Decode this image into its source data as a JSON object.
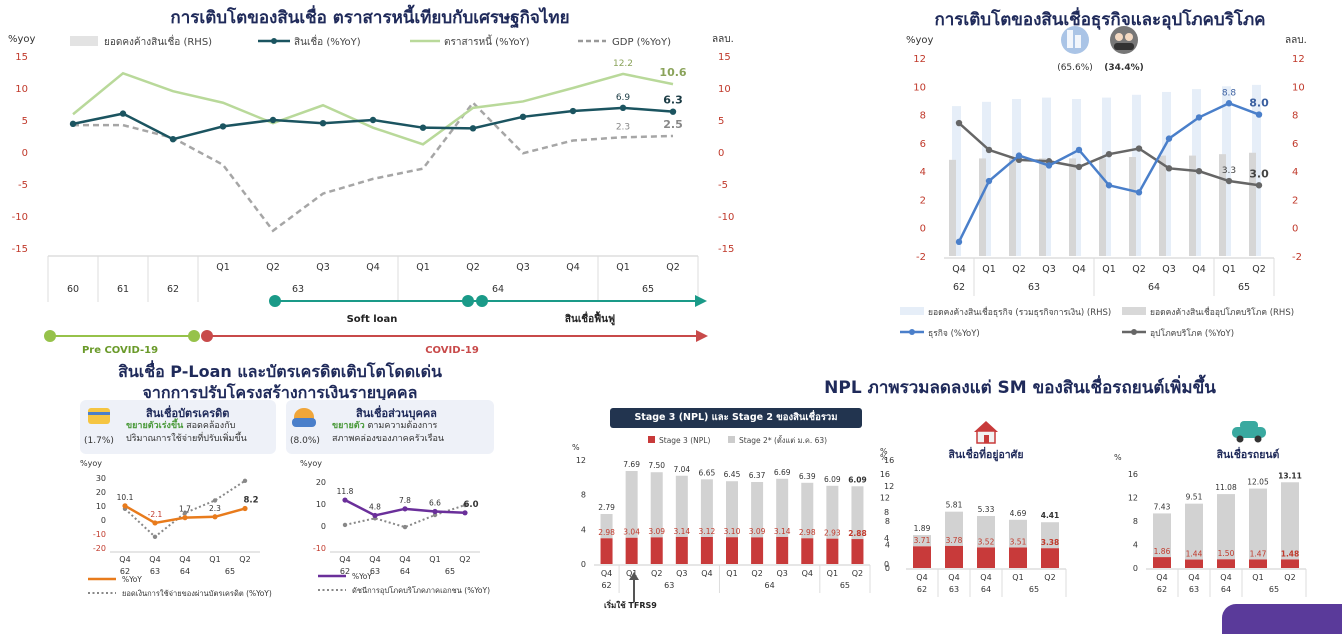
{
  "main": {
    "title": "การเติบโตของสินเชื่อ ตราสารหนี้เทียบกับเศรษฐกิจไทย",
    "left_unit": "%yoy",
    "right_unit": "ลลบ.",
    "legend": [
      "ยอดคงค้างสินเชื่อ (RHS)",
      "สินเชื่อ (%YoY)",
      "ตราสารหนี้ (%YoY)",
      "GDP (%YoY)"
    ],
    "phases": {
      "soft_loan": "Soft loan",
      "recovery": "สินเชื่อฟื้นฟู",
      "pre_covid": "Pre COVID-19",
      "covid": "COVID-19"
    }
  },
  "right": {
    "title": "การเติบโตของสินเชื่อธุรกิจและอุปโภคบริโภค",
    "left_unit": "%yoy",
    "right_unit": "ลลบ.",
    "share_business": "(65.6%)",
    "share_consumer": "(34.4%)",
    "legend": [
      "ยอดคงค้างสินเชื่อธุรกิจ (รวมธุรกิจการเงิน) (RHS)",
      "ยอดคงค้างสินเชื่ออุปโภคบริโภค (RHS)",
      "ธุรกิจ (%YoY)",
      "อุปโภคบริโภค (%YoY)"
    ]
  },
  "ploan": {
    "title_line1": "สินเชื่อ P-Loan และบัตรเครดิตเติบโตโดดเด่น",
    "title_line2": "จากการปรับโครงสร้างการเงินรายบุคคล",
    "card1": {
      "title": "สินเชื่อบัตรเครดิต",
      "share": "(1.7%)",
      "desc_bold": "ขยายตัวเร่งขึ้น",
      "desc_rest": " สอดคล้องกับ",
      "desc_line2": "ปริมาณการใช้จ่ายที่ปรับเพิ่มขึ้น"
    },
    "card2": {
      "title": "สินเชื่อส่วนบุคคล",
      "share": "(8.0%)",
      "desc_bold": "ขยายตัว",
      "desc_rest": " ตามความต้องการ",
      "desc_line2": "สภาพคล่องของภาคครัวเรือน"
    },
    "unit": "%yoy",
    "legend_cc": [
      "%YoY",
      "ยอดเงินการใช้จ่ายของผ่านบัตรเครดิต (%YoY)"
    ],
    "legend_pl": [
      "%YoY",
      "ดัชนีการอุปโภคบริโภคภาคเอกชน (%YoY)"
    ]
  },
  "npl": {
    "title": "NPL ภาพรวมลดลงแต่ SM ของสินเชื่อรถยนต์เพิ่มขึ้น",
    "box_title": "Stage 3 (NPL) และ Stage 2 ของสินเชื่อรวม",
    "legend": [
      "Stage 3 (NPL)",
      "Stage 2* (ตั้งแต่ ม.ค. 63)"
    ],
    "unit": "%",
    "note": "เริ่มใช้ TFRS9",
    "housing_label": "สินเชื่อที่อยู่อาศัย",
    "auto_label": "สินเชื่อรถยนต์"
  },
  "chart_data": [
    {
      "type": "bar",
      "title": "การเติบโตของสินเชื่อ ตราสารหนี้เทียบกับเศรษฐกิจไทย",
      "categories": [
        "60",
        "61",
        "62",
        "Q1",
        "Q2",
        "Q3",
        "Q4",
        "Q1",
        "Q2",
        "Q3",
        "Q4",
        "Q1",
        "Q2"
      ],
      "year_groups": [
        {
          "label": "63",
          "span": [
            3,
            6
          ]
        },
        {
          "label": "64",
          "span": [
            7,
            10
          ]
        },
        {
          "label": "65",
          "span": [
            11,
            12
          ]
        }
      ],
      "ylim": [
        -15,
        15
      ],
      "yticks": [
        -15,
        -10,
        -5,
        0,
        5,
        10,
        15
      ],
      "series": [
        {
          "name": "ยอดคงค้างสินเชื่อ (RHS)",
          "type": "bar",
          "values": [
            12.6,
            13.2,
            13.6,
            13.9,
            14.2,
            14.2,
            14.4,
            14.6,
            14.7,
            14.7,
            14.9,
            15.0,
            15.1
          ]
        },
        {
          "name": "สินเชื่อ (%YoY)",
          "type": "line",
          "values": [
            4.4,
            6.0,
            2.0,
            4.0,
            5.0,
            4.5,
            5.0,
            3.8,
            3.7,
            5.5,
            6.4,
            6.9,
            6.3
          ]
        },
        {
          "name": "ตราสารหนี้ (%YoY)",
          "type": "line",
          "values": [
            5.9,
            12.3,
            9.5,
            7.7,
            4.5,
            7.3,
            3.8,
            1.2,
            6.9,
            7.9,
            10.0,
            12.2,
            10.6
          ]
        },
        {
          "name": "GDP (%YoY)",
          "type": "line",
          "values": [
            4.2,
            4.2,
            2.2,
            -2.0,
            -12.3,
            -6.5,
            -4.2,
            -2.6,
            7.7,
            -0.2,
            1.8,
            2.3,
            2.5
          ]
        }
      ],
      "data_labels": [
        {
          "series": 1,
          "index": 11,
          "text": "6.9"
        },
        {
          "series": 1,
          "index": 12,
          "text": "6.3"
        },
        {
          "series": 2,
          "index": 11,
          "text": "12.2"
        },
        {
          "series": 2,
          "index": 12,
          "text": "10.6"
        },
        {
          "series": 3,
          "index": 11,
          "text": "2.3"
        },
        {
          "series": 3,
          "index": 12,
          "text": "2.5"
        }
      ]
    },
    {
      "type": "bar",
      "title": "การเติบโตของสินเชื่อธุรกิจและอุปโภคบริโภค",
      "categories": [
        "Q4",
        "Q1",
        "Q2",
        "Q3",
        "Q4",
        "Q1",
        "Q2",
        "Q3",
        "Q4",
        "Q1",
        "Q2"
      ],
      "year_groups": [
        {
          "label": "62",
          "span": [
            0,
            0
          ]
        },
        {
          "label": "63",
          "span": [
            1,
            4
          ]
        },
        {
          "label": "64",
          "span": [
            5,
            8
          ]
        },
        {
          "label": "65",
          "span": [
            9,
            10
          ]
        }
      ],
      "ylim": [
        -2,
        12
      ],
      "yticks": [
        -2,
        0,
        2,
        4,
        6,
        8,
        10,
        12
      ],
      "series": [
        {
          "name": "ยอดคงค้างสินเชื่อธุรกิจ (รวมธุรกิจการเงิน) (RHS)",
          "type": "bar",
          "values": [
            8.6,
            8.9,
            9.1,
            9.2,
            9.1,
            9.2,
            9.4,
            9.6,
            9.8,
            10.0,
            10.1
          ]
        },
        {
          "name": "ยอดคงค้างสินเชื่ออุปโภคบริโภค (RHS)",
          "type": "bar",
          "values": [
            4.8,
            4.9,
            4.9,
            4.9,
            4.9,
            4.9,
            5.0,
            5.1,
            5.1,
            5.2,
            5.3
          ]
        },
        {
          "name": "ธุรกิจ (%YoY)",
          "type": "line",
          "values": [
            -1.0,
            3.3,
            5.1,
            4.4,
            5.5,
            3.0,
            2.5,
            6.3,
            7.8,
            8.8,
            8.0
          ]
        },
        {
          "name": "อุปโภคบริโภค (%YoY)",
          "type": "line",
          "values": [
            7.4,
            5.5,
            4.8,
            4.7,
            4.3,
            5.2,
            5.6,
            4.2,
            4.0,
            3.3,
            3.0
          ]
        }
      ],
      "data_labels": [
        {
          "series": 2,
          "index": 9,
          "text": "8.8"
        },
        {
          "series": 2,
          "index": 10,
          "text": "8.0"
        },
        {
          "series": 3,
          "index": 9,
          "text": "3.3"
        },
        {
          "series": 3,
          "index": 10,
          "text": "3.0"
        }
      ]
    },
    {
      "type": "line",
      "title": "สินเชื่อบัตรเครดิต",
      "categories": [
        "Q4",
        "Q4",
        "Q4",
        "Q1",
        "Q2"
      ],
      "year_groups": [
        {
          "label": "62",
          "span": [
            0,
            0
          ]
        },
        {
          "label": "63",
          "span": [
            1,
            1
          ]
        },
        {
          "label": "64",
          "span": [
            2,
            2
          ]
        },
        {
          "label": "65",
          "span": [
            3,
            4
          ]
        }
      ],
      "ylim": [
        -20,
        30
      ],
      "yticks": [
        -20,
        -10,
        0,
        10,
        20,
        30
      ],
      "series": [
        {
          "name": "%YoY",
          "values": [
            10.1,
            -2.1,
            1.7,
            2.3,
            8.2
          ]
        },
        {
          "name": "ยอดเงินการใช้จ่ายของผ่านบัตรเครดิต (%YoY)",
          "values": [
            8.0,
            -12.0,
            5.0,
            14.0,
            28.0
          ]
        }
      ],
      "data_labels": [
        "10.1",
        "-2.1",
        "1.7",
        "2.3",
        "8.2"
      ]
    },
    {
      "type": "line",
      "title": "สินเชื่อส่วนบุคคล",
      "categories": [
        "Q4",
        "Q4",
        "Q4",
        "Q1",
        "Q2"
      ],
      "year_groups": [
        {
          "label": "62",
          "span": [
            0,
            0
          ]
        },
        {
          "label": "63",
          "span": [
            1,
            1
          ]
        },
        {
          "label": "64",
          "span": [
            2,
            2
          ]
        },
        {
          "label": "65",
          "span": [
            3,
            4
          ]
        }
      ],
      "ylim": [
        -10,
        20
      ],
      "yticks": [
        -10,
        0,
        10,
        20
      ],
      "series": [
        {
          "name": "%YoY",
          "values": [
            11.8,
            4.8,
            7.8,
            6.6,
            6.0
          ]
        },
        {
          "name": "ดัชนีการอุปโภคบริโภคภาคเอกชน (%YoY)",
          "values": [
            0.5,
            3.5,
            -0.5,
            5.0,
            9.5
          ]
        }
      ],
      "data_labels": [
        "11.8",
        "4.8",
        "7.8",
        "6.6",
        "6.0"
      ]
    },
    {
      "type": "bar",
      "title": "Stage 3 (NPL) และ Stage 2 ของสินเชื่อรวม",
      "categories": [
        "Q4",
        "Q1",
        "Q2",
        "Q3",
        "Q4",
        "Q1",
        "Q2",
        "Q3",
        "Q4",
        "Q1",
        "Q2"
      ],
      "year_groups": [
        {
          "label": "62",
          "span": [
            0,
            0
          ]
        },
        {
          "label": "63",
          "span": [
            1,
            4
          ]
        },
        {
          "label": "64",
          "span": [
            5,
            8
          ]
        },
        {
          "label": "65",
          "span": [
            9,
            10
          ]
        }
      ],
      "ylim": [
        0,
        12
      ],
      "yticks": [
        0,
        4,
        8,
        12
      ],
      "series": [
        {
          "name": "Stage 3 (NPL)",
          "values": [
            2.98,
            3.04,
            3.09,
            3.14,
            3.12,
            3.1,
            3.09,
            3.14,
            2.98,
            2.93,
            2.88
          ]
        },
        {
          "name": "Stage 2* (ตั้งแต่ ม.ค. 63)",
          "values": [
            2.79,
            7.69,
            7.5,
            7.04,
            6.65,
            6.45,
            6.37,
            6.69,
            6.39,
            6.09,
            6.09
          ]
        }
      ]
    },
    {
      "type": "bar",
      "title": "สินเชื่อที่อยู่อาศัย",
      "categories": [
        "Q4",
        "Q4",
        "Q4",
        "Q1",
        "Q2"
      ],
      "year_groups": [
        {
          "label": "62",
          "span": [
            0,
            0
          ]
        },
        {
          "label": "63",
          "span": [
            1,
            1
          ]
        },
        {
          "label": "64",
          "span": [
            2,
            2
          ]
        },
        {
          "label": "65",
          "span": [
            3,
            4
          ]
        }
      ],
      "ylim": [
        0,
        16
      ],
      "yticks": [
        0,
        4,
        8,
        12,
        16
      ],
      "series": [
        {
          "name": "Stage 3 (NPL)",
          "values": [
            3.71,
            3.78,
            3.52,
            3.51,
            3.38
          ]
        },
        {
          "name": "Stage 2",
          "values": [
            1.89,
            5.81,
            5.33,
            4.69,
            4.41
          ]
        }
      ]
    },
    {
      "type": "bar",
      "title": "สินเชื่อรถยนต์",
      "categories": [
        "Q4",
        "Q4",
        "Q4",
        "Q1",
        "Q2"
      ],
      "year_groups": [
        {
          "label": "62",
          "span": [
            0,
            0
          ]
        },
        {
          "label": "63",
          "span": [
            1,
            1
          ]
        },
        {
          "label": "64",
          "span": [
            2,
            2
          ]
        },
        {
          "label": "65",
          "span": [
            3,
            4
          ]
        }
      ],
      "ylim": [
        0,
        16
      ],
      "yticks": [
        0,
        4,
        8,
        12,
        16
      ],
      "series": [
        {
          "name": "Stage 3 (NPL)",
          "values": [
            1.86,
            1.44,
            1.5,
            1.47,
            1.48
          ]
        },
        {
          "name": "Stage 2",
          "values": [
            7.43,
            9.51,
            11.08,
            12.05,
            13.11
          ]
        }
      ]
    }
  ]
}
